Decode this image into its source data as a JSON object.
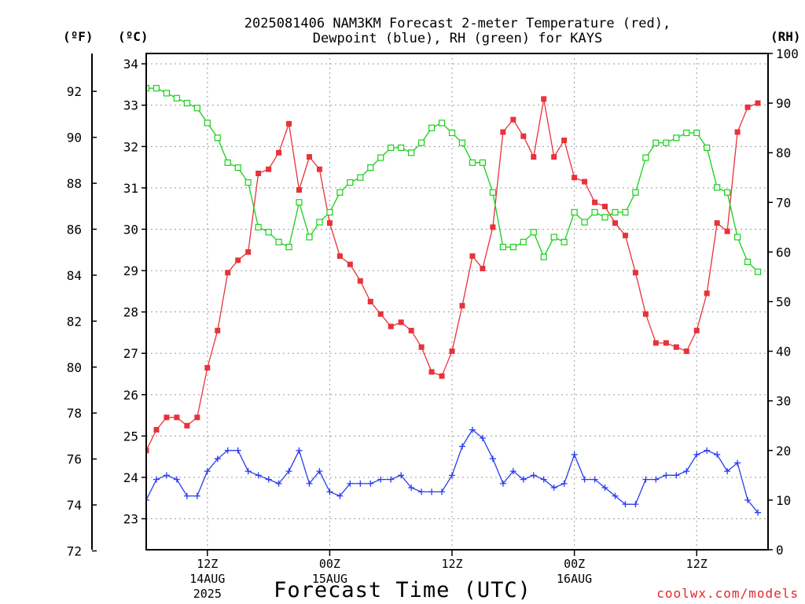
{
  "title_line1": "2025081406 NAM3KM Forecast 2-meter Temperature (red),",
  "title_line2": "Dewpoint (blue), RH (green) for KAYS",
  "unit_f": "(ºF)",
  "unit_c": "(ºC)",
  "unit_rh": "(RH)",
  "xlabel": "Forecast Time (UTC)",
  "credit": "coolwx.com/models",
  "colors": {
    "temperature": "#e8323a",
    "dewpoint": "#2a3cf0",
    "rh": "#18d018"
  },
  "chart_data": {
    "type": "line",
    "title": "2025081406 NAM3KM Forecast 2-meter Temperature (red), Dewpoint (blue), RH (green) for KAYS",
    "xlabel": "Forecast Time (UTC)",
    "x_unit": "forecast hour (hourly steps)",
    "x_range": [
      0,
      61
    ],
    "x_ticks": [
      {
        "hour": 6,
        "label": "12Z",
        "sub1": "14AUG",
        "sub2": "2025"
      },
      {
        "hour": 18,
        "label": "00Z",
        "sub1": "15AUG",
        "sub2": ""
      },
      {
        "hour": 30,
        "label": "12Z",
        "sub1": "",
        "sub2": ""
      },
      {
        "hour": 42,
        "label": "00Z",
        "sub1": "16AUG",
        "sub2": ""
      },
      {
        "hour": 54,
        "label": "12Z",
        "sub1": "",
        "sub2": ""
      }
    ],
    "ylim_c": [
      22.25,
      34.25
    ],
    "yticks_c": [
      23,
      24,
      25,
      26,
      27,
      28,
      29,
      30,
      31,
      32,
      33,
      34
    ],
    "yticks_f": [
      72,
      74,
      76,
      78,
      80,
      82,
      84,
      86,
      88,
      90,
      92
    ],
    "ylim_rh": [
      0,
      100
    ],
    "yticks_rh": [
      0,
      10,
      20,
      30,
      40,
      50,
      60,
      70,
      80,
      90,
      100
    ],
    "series": [
      {
        "name": "Temperature",
        "axis": "celsius",
        "values": [
          24.65,
          25.15,
          25.45,
          25.45,
          25.25,
          25.45,
          26.65,
          27.55,
          28.95,
          29.25,
          29.45,
          31.35,
          31.45,
          31.85,
          32.55,
          30.95,
          31.75,
          31.45,
          30.15,
          29.35,
          29.15,
          28.75,
          28.25,
          27.95,
          27.65,
          27.75,
          27.55,
          27.15,
          26.55,
          26.45,
          27.05,
          28.15,
          29.35,
          29.05,
          30.05,
          32.35,
          32.65,
          32.25,
          31.75,
          33.15,
          31.75,
          32.15,
          31.25,
          31.15,
          30.65,
          30.55,
          30.15,
          29.85,
          28.95,
          27.95,
          27.25,
          27.25,
          27.15,
          27.05,
          27.55,
          28.45,
          30.15,
          29.95,
          32.35,
          32.95,
          33.05
        ]
      },
      {
        "name": "Dewpoint",
        "axis": "celsius",
        "values": [
          23.45,
          23.95,
          24.05,
          23.95,
          23.55,
          23.55,
          24.15,
          24.45,
          24.65,
          24.65,
          24.15,
          24.05,
          23.95,
          23.85,
          24.15,
          24.65,
          23.85,
          24.15,
          23.65,
          23.55,
          23.85,
          23.85,
          23.85,
          23.95,
          23.95,
          24.05,
          23.75,
          23.65,
          23.65,
          23.65,
          24.05,
          24.75,
          25.15,
          24.95,
          24.45,
          23.85,
          24.15,
          23.95,
          24.05,
          23.95,
          23.75,
          23.85,
          24.55,
          23.95,
          23.95,
          23.75,
          23.55,
          23.35,
          23.35,
          23.95,
          23.95,
          24.05,
          24.05,
          24.15,
          24.55,
          24.65,
          24.55,
          24.15,
          24.35,
          23.45,
          23.15
        ]
      },
      {
        "name": "RH",
        "axis": "rh",
        "values": [
          93,
          93,
          92,
          91,
          90,
          89,
          86,
          83,
          78,
          77,
          74,
          65,
          64,
          62,
          61,
          70,
          63,
          66,
          68,
          72,
          74,
          75,
          77,
          79,
          81,
          81,
          80,
          82,
          85,
          86,
          84,
          82,
          78,
          78,
          72,
          61,
          61,
          62,
          64,
          59,
          63,
          62,
          68,
          66,
          68,
          67,
          68,
          68,
          72,
          79,
          82,
          82,
          83,
          84,
          84,
          81,
          73,
          72,
          63,
          58,
          56
        ]
      }
    ]
  }
}
